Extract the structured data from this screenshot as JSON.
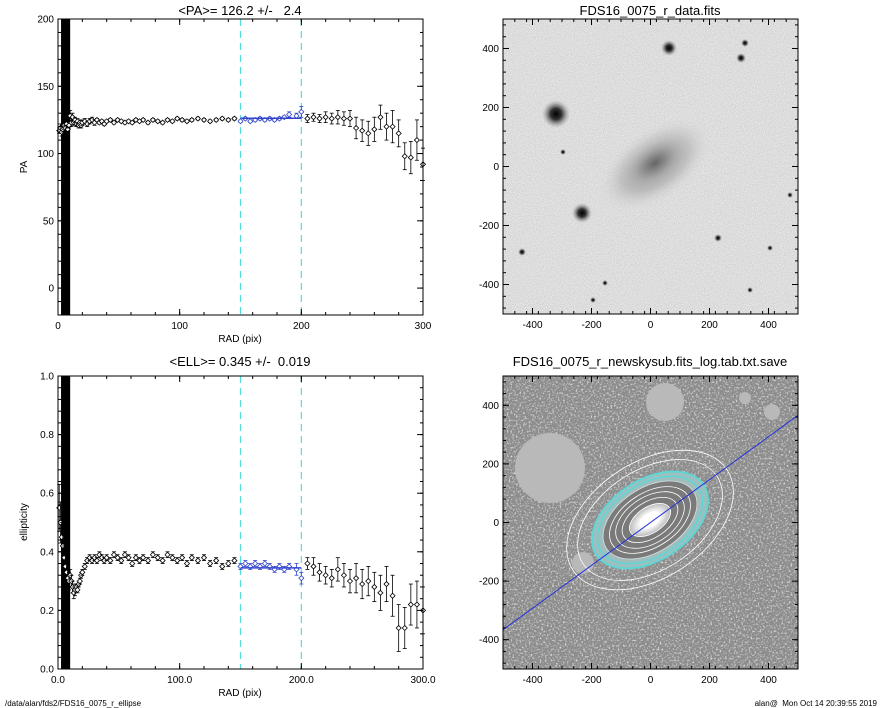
{
  "chart_data": [
    {
      "type": "scatter",
      "title": "<PA>= 126.2 +/-   2.4",
      "xlabel": "RAD (pix)",
      "ylabel": "PA",
      "xlim": [
        0,
        300
      ],
      "ylim": [
        -20,
        200
      ],
      "xticks": [
        0,
        100,
        200,
        300
      ],
      "yticks": [
        0,
        50,
        100,
        150,
        200
      ],
      "grid": false,
      "vlines": [
        150,
        200
      ],
      "fit_line": {
        "x": [
          150,
          200
        ],
        "y": 126.2
      },
      "points": [
        [
          1,
          117,
          2
        ],
        [
          2,
          119,
          3
        ],
        [
          3,
          116,
          3
        ],
        [
          4,
          118,
          2
        ],
        [
          5,
          121,
          3
        ],
        [
          6,
          119,
          2
        ],
        [
          7,
          122,
          3
        ],
        [
          8,
          118,
          3
        ],
        [
          9,
          121,
          2
        ],
        [
          10,
          128,
          4
        ],
        [
          11,
          123,
          3
        ],
        [
          12,
          127,
          3
        ],
        [
          13,
          123,
          2
        ],
        [
          14,
          125,
          2
        ],
        [
          15,
          122,
          2
        ],
        [
          16,
          124,
          2
        ],
        [
          17,
          121,
          2
        ],
        [
          18,
          123,
          2
        ],
        [
          19,
          121,
          2
        ],
        [
          20,
          123,
          2
        ],
        [
          22,
          124,
          2
        ],
        [
          24,
          122,
          2
        ],
        [
          26,
          124,
          2
        ],
        [
          28,
          125,
          2
        ],
        [
          30,
          123,
          2
        ],
        [
          32,
          125,
          1
        ],
        [
          34,
          123,
          1
        ],
        [
          36,
          124,
          1
        ],
        [
          38,
          122,
          1
        ],
        [
          40,
          124,
          1
        ],
        [
          43,
          125,
          1
        ],
        [
          46,
          123,
          1
        ],
        [
          49,
          125,
          1
        ],
        [
          52,
          124,
          1
        ],
        [
          55,
          123,
          1
        ],
        [
          58,
          124,
          1
        ],
        [
          61,
          123,
          1
        ],
        [
          64,
          125,
          1
        ],
        [
          67,
          124,
          1
        ],
        [
          70,
          125,
          1
        ],
        [
          74,
          123,
          1
        ],
        [
          78,
          125,
          1
        ],
        [
          82,
          124,
          1
        ],
        [
          86,
          123,
          1
        ],
        [
          90,
          125,
          1
        ],
        [
          94,
          124,
          1
        ],
        [
          98,
          126,
          1
        ],
        [
          102,
          125,
          1
        ],
        [
          106,
          124,
          1
        ],
        [
          110,
          125,
          1
        ],
        [
          115,
          126,
          1
        ],
        [
          120,
          125,
          1
        ],
        [
          125,
          124,
          1
        ],
        [
          130,
          125,
          1
        ],
        [
          135,
          126,
          1
        ],
        [
          140,
          125,
          1
        ],
        [
          145,
          126,
          1
        ],
        [
          150,
          124,
          1
        ],
        [
          154,
          126,
          1
        ],
        [
          158,
          124,
          1
        ],
        [
          162,
          125,
          1
        ],
        [
          166,
          126,
          1
        ],
        [
          170,
          125,
          1
        ],
        [
          174,
          126,
          1
        ],
        [
          178,
          125,
          1
        ],
        [
          182,
          126,
          1
        ],
        [
          186,
          127,
          1
        ],
        [
          190,
          129,
          2
        ],
        [
          196,
          128,
          2
        ],
        [
          200,
          131,
          4
        ],
        [
          205,
          126,
          3
        ],
        [
          210,
          127,
          3
        ],
        [
          215,
          126,
          3
        ],
        [
          220,
          127,
          4
        ],
        [
          225,
          126,
          4
        ],
        [
          230,
          127,
          5
        ],
        [
          235,
          126,
          5
        ],
        [
          240,
          126,
          6
        ],
        [
          245,
          119,
          8
        ],
        [
          250,
          117,
          8
        ],
        [
          255,
          115,
          9
        ],
        [
          260,
          118,
          9
        ],
        [
          265,
          127,
          9
        ],
        [
          270,
          120,
          10
        ],
        [
          275,
          120,
          12
        ],
        [
          280,
          115,
          10
        ],
        [
          285,
          98,
          10
        ],
        [
          290,
          97,
          12
        ],
        [
          295,
          110,
          15
        ],
        [
          300,
          92,
          12
        ]
      ]
    },
    {
      "type": "image",
      "title": "FDS16_0075_r_data.fits",
      "xlim": [
        -500,
        500
      ],
      "ylim": [
        -500,
        500
      ],
      "xticks": [
        -400,
        -200,
        0,
        200,
        400
      ],
      "yticks": [
        -400,
        -200,
        0,
        200,
        400
      ]
    },
    {
      "type": "scatter",
      "title": "<ELL>= 0.345 +/-  0.019",
      "xlabel": "RAD (pix)",
      "ylabel": "ellipticity",
      "xlim": [
        0,
        300
      ],
      "ylim": [
        0,
        1
      ],
      "xticks": [
        0,
        100,
        200,
        300
      ],
      "yticks": [
        0.0,
        0.2,
        0.4,
        0.6,
        0.8,
        1.0
      ],
      "grid": false,
      "vlines": [
        150,
        200
      ],
      "fit_line": {
        "x": [
          150,
          200
        ],
        "y": 0.345
      },
      "points": [
        [
          1,
          0.55,
          0.08
        ],
        [
          2,
          0.5,
          0.07
        ],
        [
          3,
          0.45,
          0.05
        ],
        [
          4,
          0.42,
          0.05
        ],
        [
          5,
          0.38,
          0.04
        ],
        [
          6,
          0.35,
          0.04
        ],
        [
          7,
          0.33,
          0.03
        ],
        [
          8,
          0.31,
          0.03
        ],
        [
          9,
          0.3,
          0.03
        ],
        [
          10,
          0.32,
          0.02
        ],
        [
          11,
          0.3,
          0.02
        ],
        [
          12,
          0.28,
          0.02
        ],
        [
          13,
          0.26,
          0.02
        ],
        [
          14,
          0.27,
          0.02
        ],
        [
          15,
          0.28,
          0.01
        ],
        [
          16,
          0.27,
          0.01
        ],
        [
          17,
          0.29,
          0.01
        ],
        [
          18,
          0.3,
          0.01
        ],
        [
          19,
          0.32,
          0.01
        ],
        [
          20,
          0.33,
          0.01
        ],
        [
          22,
          0.35,
          0.01
        ],
        [
          24,
          0.37,
          0.01
        ],
        [
          26,
          0.38,
          0.01
        ],
        [
          28,
          0.37,
          0.01
        ],
        [
          30,
          0.38,
          0.01
        ],
        [
          32,
          0.37,
          0.01
        ],
        [
          34,
          0.39,
          0.01
        ],
        [
          36,
          0.38,
          0.01
        ],
        [
          38,
          0.37,
          0.01
        ],
        [
          40,
          0.38,
          0.01
        ],
        [
          43,
          0.37,
          0.01
        ],
        [
          46,
          0.39,
          0.01
        ],
        [
          49,
          0.38,
          0.01
        ],
        [
          52,
          0.37,
          0.01
        ],
        [
          55,
          0.39,
          0.01
        ],
        [
          58,
          0.38,
          0.01
        ],
        [
          61,
          0.36,
          0.01
        ],
        [
          64,
          0.38,
          0.01
        ],
        [
          67,
          0.37,
          0.01
        ],
        [
          70,
          0.38,
          0.01
        ],
        [
          74,
          0.37,
          0.01
        ],
        [
          78,
          0.39,
          0.01
        ],
        [
          82,
          0.38,
          0.01
        ],
        [
          86,
          0.37,
          0.01
        ],
        [
          90,
          0.39,
          0.01
        ],
        [
          94,
          0.38,
          0.01
        ],
        [
          98,
          0.37,
          0.01
        ],
        [
          102,
          0.38,
          0.01
        ],
        [
          106,
          0.36,
          0.01
        ],
        [
          110,
          0.38,
          0.01
        ],
        [
          115,
          0.37,
          0.01
        ],
        [
          120,
          0.38,
          0.01
        ],
        [
          125,
          0.36,
          0.01
        ],
        [
          130,
          0.37,
          0.01
        ],
        [
          135,
          0.35,
          0.01
        ],
        [
          140,
          0.36,
          0.01
        ],
        [
          145,
          0.37,
          0.01
        ],
        [
          150,
          0.35,
          0.01
        ],
        [
          154,
          0.36,
          0.01
        ],
        [
          158,
          0.35,
          0.01
        ],
        [
          162,
          0.36,
          0.01
        ],
        [
          166,
          0.35,
          0.01
        ],
        [
          170,
          0.36,
          0.01
        ],
        [
          174,
          0.35,
          0.01
        ],
        [
          178,
          0.34,
          0.01
        ],
        [
          182,
          0.35,
          0.01
        ],
        [
          186,
          0.34,
          0.01
        ],
        [
          190,
          0.35,
          0.01
        ],
        [
          196,
          0.34,
          0.02
        ],
        [
          200,
          0.31,
          0.02
        ],
        [
          205,
          0.36,
          0.02
        ],
        [
          210,
          0.35,
          0.03
        ],
        [
          215,
          0.33,
          0.03
        ],
        [
          220,
          0.32,
          0.03
        ],
        [
          225,
          0.31,
          0.03
        ],
        [
          230,
          0.34,
          0.04
        ],
        [
          235,
          0.32,
          0.04
        ],
        [
          240,
          0.3,
          0.04
        ],
        [
          245,
          0.31,
          0.05
        ],
        [
          250,
          0.29,
          0.05
        ],
        [
          255,
          0.3,
          0.05
        ],
        [
          260,
          0.28,
          0.05
        ],
        [
          265,
          0.26,
          0.06
        ],
        [
          270,
          0.29,
          0.06
        ],
        [
          275,
          0.25,
          0.07
        ],
        [
          280,
          0.14,
          0.08
        ],
        [
          285,
          0.14,
          0.07
        ],
        [
          290,
          0.22,
          0.07
        ],
        [
          295,
          0.22,
          0.08
        ],
        [
          300,
          0.2,
          0.08
        ]
      ]
    },
    {
      "type": "image",
      "title": "FDS16_0075_r_newskysub.fits_log.tab.txt.save",
      "xlim": [
        -500,
        500
      ],
      "ylim": [
        -500,
        500
      ],
      "xticks": [
        -400,
        -200,
        0,
        200,
        400
      ],
      "yticks": [
        -400,
        -200,
        0,
        200,
        400
      ],
      "line_color": "#2233dd"
    }
  ],
  "footer": {
    "path": "/data/alan/fds2/FDS16_0075_r_ellipse",
    "stamp": "alan@  Mon Oct 14 20:39:55 2019"
  },
  "colors": {
    "points": "#000000",
    "fit": "#3344cc",
    "vline": "#55dddd"
  }
}
